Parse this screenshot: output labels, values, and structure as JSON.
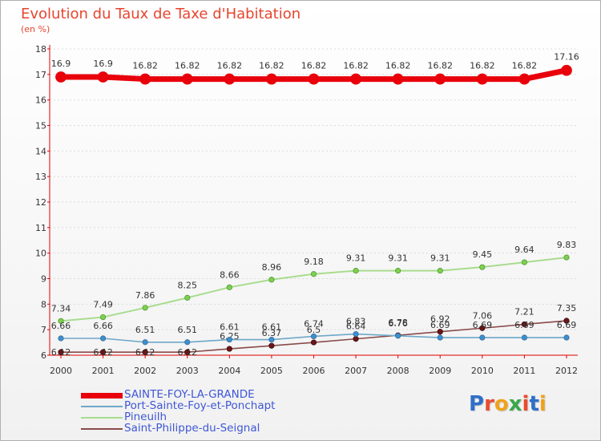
{
  "chart_data": {
    "type": "line",
    "title": "Evolution du Taux de Taxe d'Habitation",
    "ylabel": "(en %)",
    "xlabel": "",
    "ylim": [
      6,
      18
    ],
    "yticks": [
      6,
      7,
      8,
      9,
      10,
      11,
      12,
      13,
      14,
      15,
      16,
      17,
      18
    ],
    "categories": [
      "2000",
      "2001",
      "2002",
      "2003",
      "2004",
      "2005",
      "2006",
      "2007",
      "2008",
      "2009",
      "2010",
      "2011",
      "2012"
    ],
    "series": [
      {
        "name": "SAINTE-FOY-LA-GRANDE",
        "color": "#e8000b",
        "values": [
          16.9,
          16.9,
          16.82,
          16.82,
          16.82,
          16.82,
          16.82,
          16.82,
          16.82,
          16.82,
          16.82,
          16.82,
          17.16
        ],
        "labels": [
          "16.9",
          "16.9",
          "16.82",
          "16.82",
          "16.82",
          "16.82",
          "16.82",
          "16.82",
          "16.82",
          "16.82",
          "16.82",
          "16.82",
          "17.16"
        ]
      },
      {
        "name": "Port-Sainte-Foy-et-Ponchapt",
        "color": "#6ea7c9",
        "values": [
          6.66,
          6.66,
          6.51,
          6.51,
          6.61,
          6.61,
          6.74,
          6.83,
          6.76,
          6.69,
          6.69,
          6.69,
          6.69
        ],
        "labels": [
          "6.66",
          "6.66",
          "6.51",
          "6.51",
          "6.61",
          "6.61",
          "6.74",
          "6.83",
          "6.76",
          "6.69",
          "6.69",
          "6.69",
          "6.69"
        ]
      },
      {
        "name": "Pineuilh",
        "color": "#a8dc8e",
        "values": [
          7.34,
          7.49,
          7.86,
          8.25,
          8.66,
          8.96,
          9.18,
          9.31,
          9.31,
          9.31,
          9.45,
          9.64,
          9.83
        ],
        "labels": [
          "7.34",
          "7.49",
          "7.86",
          "8.25",
          "8.66",
          "8.96",
          "9.18",
          "9.31",
          "9.31",
          "9.31",
          "9.45",
          "9.64",
          "9.83"
        ]
      },
      {
        "name": "Saint-Philippe-du-Seignal",
        "color": "#8a4a4a",
        "values": [
          6.12,
          6.12,
          6.12,
          6.12,
          6.25,
          6.37,
          6.5,
          6.64,
          6.78,
          6.92,
          7.06,
          7.21,
          7.35
        ],
        "labels": [
          "6.12",
          "6.12",
          "6.12",
          "6.12",
          "6.25",
          "6.37",
          "6.5",
          "6.64",
          "6.78",
          "6.92",
          "7.06",
          "7.21",
          "7.35"
        ]
      }
    ]
  },
  "logo": {
    "text": "Proxiti"
  }
}
